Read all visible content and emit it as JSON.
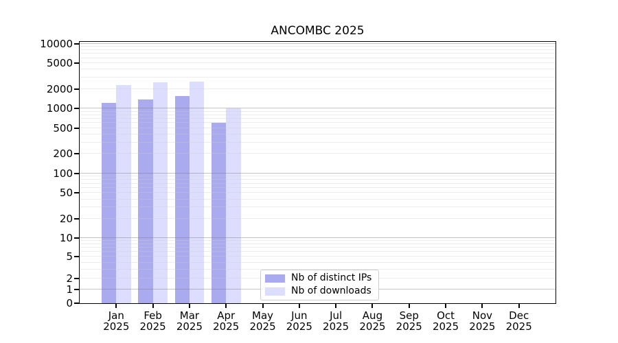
{
  "title": "ANCOMBC 2025",
  "colors": {
    "ips_bar": "#aaaaee",
    "downloads_bar": "#ddddff",
    "grid_major": "#c2c2c2",
    "grid_minor": "#ececec",
    "axis": "#000000",
    "legend_border": "#cccccc",
    "background": "#ffffff"
  },
  "y_axis": {
    "tick_labels": [
      "0",
      "1",
      "2",
      "5",
      "10",
      "20",
      "50",
      "100",
      "200",
      "500",
      "1000",
      "2000",
      "5000",
      "10000"
    ],
    "tick_values": [
      0,
      1,
      2,
      5,
      10,
      20,
      50,
      100,
      200,
      500,
      1000,
      2000,
      5000,
      10000
    ]
  },
  "x_axis": {
    "months": [
      {
        "label": "Jan",
        "year": "2025"
      },
      {
        "label": "Feb",
        "year": "2025"
      },
      {
        "label": "Mar",
        "year": "2025"
      },
      {
        "label": "Apr",
        "year": "2025"
      },
      {
        "label": "May",
        "year": "2025"
      },
      {
        "label": "Jun",
        "year": "2025"
      },
      {
        "label": "Jul",
        "year": "2025"
      },
      {
        "label": "Aug",
        "year": "2025"
      },
      {
        "label": "Sep",
        "year": "2025"
      },
      {
        "label": "Oct",
        "year": "2025"
      },
      {
        "label": "Nov",
        "year": "2025"
      },
      {
        "label": "Dec",
        "year": "2025"
      }
    ]
  },
  "legend": {
    "items": [
      {
        "label": "Nb of distinct IPs"
      },
      {
        "label": "Nb of downloads"
      }
    ]
  },
  "chart_data": {
    "type": "bar",
    "title": "ANCOMBC 2025",
    "categories": [
      "Jan 2025",
      "Feb 2025",
      "Mar 2025",
      "Apr 2025",
      "May 2025",
      "Jun 2025",
      "Jul 2025",
      "Aug 2025",
      "Sep 2025",
      "Oct 2025",
      "Nov 2025",
      "Dec 2025"
    ],
    "series": [
      {
        "name": "Nb of distinct IPs",
        "color": "#aaaaee",
        "values": [
          1220,
          1370,
          1580,
          610,
          null,
          null,
          null,
          null,
          null,
          null,
          null,
          null
        ]
      },
      {
        "name": "Nb of downloads",
        "color": "#ddddff",
        "values": [
          2330,
          2560,
          2630,
          1000,
          null,
          null,
          null,
          null,
          null,
          null,
          null,
          null
        ]
      }
    ],
    "xlabel": "",
    "ylabel": "",
    "yscale": "symlog (asinh-like, linear below 1, log above)",
    "yticks": [
      0,
      1,
      2,
      5,
      10,
      20,
      50,
      100,
      200,
      500,
      1000,
      2000,
      5000,
      10000
    ],
    "ylim": [
      0,
      10700
    ],
    "grid": "horizontal major + minor gridlines",
    "legend_position": "lower center"
  }
}
